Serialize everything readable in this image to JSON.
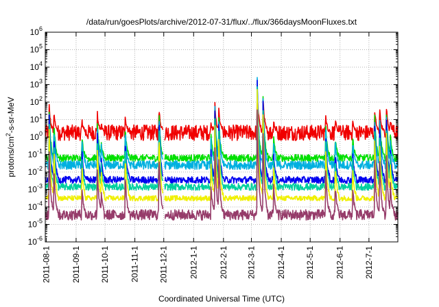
{
  "chart_data": {
    "type": "line",
    "title": "/data/run/goesPlots/archive/2012-07-31/flux/../flux/366daysMoonFluxes.txt",
    "xlabel": "Coordinated Universal Time (UTC)",
    "ylabel": {
      "base": "protons/cm",
      "sup": "2",
      "rest": "-s-sr-MeV"
    },
    "yscale": "log",
    "ylim": [
      1e-06,
      1000000.0
    ],
    "xlim": [
      "2011-07-31",
      "2012-07-31"
    ],
    "x_ticks": [
      "2011-08-1",
      "2011-09-1",
      "2011-10-1",
      "2011-11-1",
      "2011-12-1",
      "2012-1-1",
      "2012-2-1",
      "2012-3-1",
      "2012-4-1",
      "2012-5-1",
      "2012-6-1",
      "2012-7-1"
    ],
    "y_ticks": [
      {
        "base": "10",
        "exp": "6"
      },
      {
        "base": "10",
        "exp": "5"
      },
      {
        "base": "10",
        "exp": "4"
      },
      {
        "base": "10",
        "exp": "3"
      },
      {
        "base": "10",
        "exp": "2"
      },
      {
        "base": "10",
        "exp": "1"
      },
      {
        "base": "10",
        "exp": "0"
      },
      {
        "base": "10",
        "exp": "-1"
      },
      {
        "base": "10",
        "exp": "-2"
      },
      {
        "base": "10",
        "exp": "-3"
      },
      {
        "base": "10",
        "exp": "-4"
      },
      {
        "base": "10",
        "exp": "-5"
      },
      {
        "base": "10",
        "exp": "-6"
      }
    ],
    "grid": true,
    "data_gap": [
      "2011-11-30",
      "2011-12-02"
    ],
    "events": [
      {
        "date": "2011-08-04",
        "amplitude": 1.1
      },
      {
        "date": "2011-08-09",
        "amplitude": 0.8
      },
      {
        "date": "2011-09-07",
        "amplitude": 0.5
      },
      {
        "date": "2011-09-23",
        "amplitude": 0.8
      },
      {
        "date": "2011-09-27",
        "amplitude": 0.4
      },
      {
        "date": "2011-10-22",
        "amplitude": 0.7
      },
      {
        "date": "2011-11-26",
        "amplitude": 1.1
      },
      {
        "date": "2012-01-19",
        "amplitude": 0.5
      },
      {
        "date": "2012-01-23",
        "amplitude": 1.2
      },
      {
        "date": "2012-01-27",
        "amplitude": 1.0
      },
      {
        "date": "2012-03-07",
        "amplitude": 1.7
      },
      {
        "date": "2012-03-13",
        "amplitude": 1.4
      },
      {
        "date": "2012-03-24",
        "amplitude": 0.5
      },
      {
        "date": "2012-05-17",
        "amplitude": 0.8
      },
      {
        "date": "2012-05-27",
        "amplitude": 0.5
      },
      {
        "date": "2012-06-14",
        "amplitude": 0.5
      },
      {
        "date": "2012-07-07",
        "amplitude": 0.9
      },
      {
        "date": "2012-07-12",
        "amplitude": 1.0
      },
      {
        "date": "2012-07-19",
        "amplitude": 1.1
      },
      {
        "date": "2012-07-23",
        "amplitude": 0.6
      }
    ],
    "series": [
      {
        "color": "#f00000",
        "baseline_log10": 0.25,
        "noise": 0.45,
        "event_peak_log10": 2.7
      },
      {
        "color": "#00e000",
        "baseline_log10": -1.2,
        "noise": 0.2,
        "event_peak_log10": 3.2
      },
      {
        "color": "#00b0e0",
        "baseline_log10": -1.6,
        "noise": 0.25,
        "event_peak_log10": 3.3
      },
      {
        "color": "#0000f0",
        "baseline_log10": -2.45,
        "noise": 0.2,
        "event_peak_log10": 3.3
      },
      {
        "color": "#00d0a0",
        "baseline_log10": -2.85,
        "noise": 0.2,
        "event_peak_log10": 3.0
      },
      {
        "color": "#f0f000",
        "baseline_log10": -3.5,
        "noise": 0.15,
        "event_peak_log10": 2.8
      },
      {
        "color": "#963c6a",
        "baseline_log10": -4.45,
        "noise": 0.3,
        "event_peak_log10": 1.5
      }
    ]
  }
}
